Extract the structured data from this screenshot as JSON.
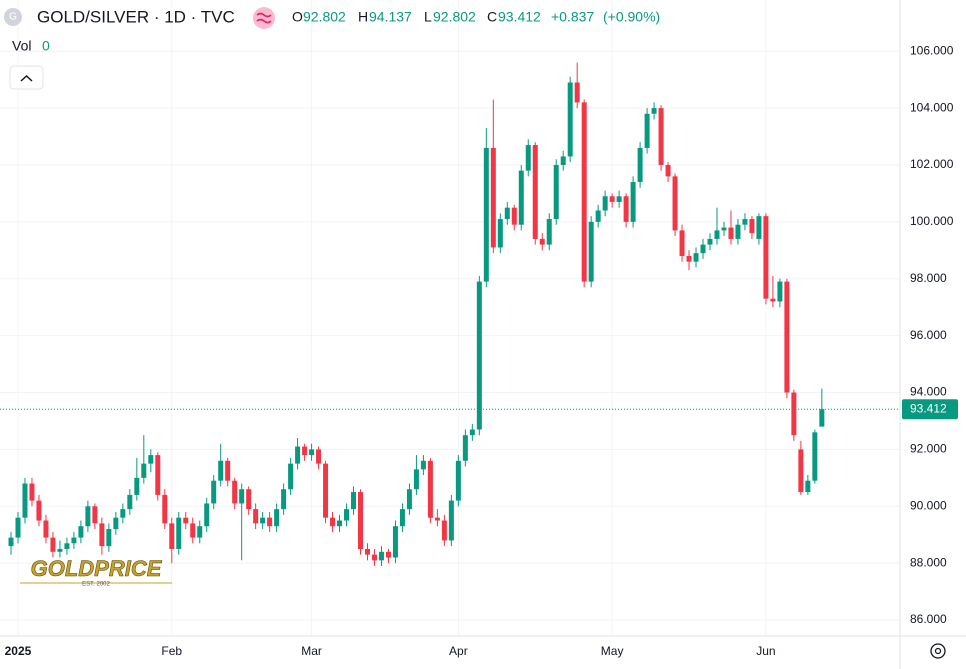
{
  "header": {
    "symbol": "GOLD/SILVER · 1D · TVC",
    "icon": "G",
    "open_label": "O",
    "high_label": "H",
    "low_label": "L",
    "close_label": "C",
    "change": "+0.837",
    "change_pct": "(+0.90%)",
    "vol_label": "Vol",
    "vol_value": "0"
  },
  "watermark": {
    "title": "GOLDPRICE",
    "subtitle": "EST. 2002"
  },
  "chart_data": {
    "type": "candlestick",
    "up_color": "#089981",
    "down_color": "#f23645",
    "grid": true,
    "categories": [
      null,
      "2025",
      null,
      null,
      null,
      null,
      null,
      null,
      null,
      null,
      null,
      null,
      null,
      null,
      null,
      null,
      null,
      null,
      null,
      null,
      null,
      null,
      null,
      "Feb",
      null,
      null,
      null,
      null,
      null,
      null,
      null,
      null,
      null,
      null,
      null,
      null,
      null,
      null,
      null,
      null,
      null,
      null,
      null,
      "Mar",
      null,
      null,
      null,
      null,
      null,
      null,
      null,
      null,
      null,
      null,
      null,
      null,
      null,
      null,
      null,
      null,
      null,
      null,
      null,
      null,
      "Apr",
      null,
      null,
      null,
      null,
      null,
      null,
      null,
      null,
      null,
      null,
      null,
      null,
      null,
      null,
      null,
      null,
      null,
      null,
      null,
      null,
      null,
      "May",
      null,
      null,
      null,
      null,
      null,
      null,
      null,
      null,
      null,
      null,
      null,
      null,
      null,
      null,
      null,
      null,
      null,
      null,
      null,
      null,
      null,
      "Jun",
      null,
      null,
      null,
      null,
      null,
      null,
      null,
      null
    ],
    "ohlc": [
      [
        88.6,
        89.1,
        88.3,
        88.9
      ],
      [
        88.9,
        89.8,
        88.7,
        89.6
      ],
      [
        89.6,
        91.0,
        89.4,
        90.8
      ],
      [
        90.8,
        91.0,
        90.0,
        90.2
      ],
      [
        90.2,
        90.4,
        89.3,
        89.5
      ],
      [
        89.5,
        89.7,
        88.7,
        88.9
      ],
      [
        88.9,
        89.1,
        88.2,
        88.4
      ],
      [
        88.4,
        88.8,
        88.2,
        88.5
      ],
      [
        88.5,
        88.9,
        88.3,
        88.7
      ],
      [
        88.7,
        89.1,
        88.5,
        88.9
      ],
      [
        88.9,
        89.5,
        88.7,
        89.3
      ],
      [
        89.3,
        90.2,
        89.1,
        90.0
      ],
      [
        90.0,
        90.1,
        89.2,
        89.4
      ],
      [
        89.4,
        89.6,
        88.3,
        88.6
      ],
      [
        88.6,
        89.4,
        88.4,
        89.2
      ],
      [
        89.2,
        89.8,
        89.0,
        89.6
      ],
      [
        89.6,
        90.1,
        89.4,
        89.9
      ],
      [
        89.9,
        90.6,
        89.7,
        90.4
      ],
      [
        90.4,
        91.7,
        90.2,
        91.0
      ],
      [
        91.0,
        92.5,
        90.8,
        91.5
      ],
      [
        91.5,
        92.0,
        91.2,
        91.8
      ],
      [
        91.8,
        91.9,
        90.2,
        90.4
      ],
      [
        90.4,
        90.6,
        89.2,
        89.4
      ],
      [
        89.4,
        89.6,
        88.0,
        88.5
      ],
      [
        88.5,
        89.8,
        88.3,
        89.6
      ],
      [
        89.6,
        89.8,
        89.2,
        89.4
      ],
      [
        89.4,
        89.6,
        88.7,
        88.9
      ],
      [
        88.9,
        89.5,
        88.7,
        89.3
      ],
      [
        89.3,
        90.3,
        89.1,
        90.1
      ],
      [
        90.1,
        91.1,
        89.9,
        90.9
      ],
      [
        90.9,
        92.2,
        90.7,
        91.6
      ],
      [
        91.6,
        91.7,
        90.7,
        90.9
      ],
      [
        90.9,
        91.0,
        89.9,
        90.1
      ],
      [
        90.1,
        90.8,
        88.1,
        90.6
      ],
      [
        90.6,
        90.7,
        89.7,
        89.9
      ],
      [
        89.9,
        90.1,
        89.2,
        89.4
      ],
      [
        89.4,
        89.8,
        89.2,
        89.6
      ],
      [
        89.6,
        89.8,
        89.1,
        89.3
      ],
      [
        89.3,
        90.1,
        89.1,
        89.9
      ],
      [
        89.9,
        90.8,
        89.7,
        90.6
      ],
      [
        90.6,
        91.7,
        90.4,
        91.5
      ],
      [
        91.5,
        92.4,
        91.3,
        92.1
      ],
      [
        92.1,
        92.2,
        91.6,
        91.8
      ],
      [
        91.8,
        92.2,
        91.6,
        92.0
      ],
      [
        92.0,
        92.1,
        91.3,
        91.5
      ],
      [
        91.5,
        91.6,
        89.4,
        89.6
      ],
      [
        89.6,
        89.8,
        89.1,
        89.3
      ],
      [
        89.3,
        89.7,
        89.1,
        89.5
      ],
      [
        89.5,
        90.1,
        89.3,
        89.9
      ],
      [
        89.9,
        90.7,
        89.7,
        90.5
      ],
      [
        90.5,
        90.6,
        88.3,
        88.5
      ],
      [
        88.5,
        88.7,
        88.1,
        88.3
      ],
      [
        88.3,
        88.5,
        87.9,
        88.1
      ],
      [
        88.1,
        88.6,
        87.9,
        88.4
      ],
      [
        88.4,
        88.5,
        88.0,
        88.2
      ],
      [
        88.2,
        89.5,
        88.0,
        89.3
      ],
      [
        89.3,
        90.1,
        89.1,
        89.9
      ],
      [
        89.9,
        90.8,
        89.7,
        90.6
      ],
      [
        90.6,
        91.8,
        90.4,
        91.3
      ],
      [
        91.3,
        91.8,
        91.1,
        91.6
      ],
      [
        91.6,
        91.7,
        89.4,
        89.6
      ],
      [
        89.6,
        89.9,
        89.3,
        89.5
      ],
      [
        89.5,
        89.7,
        88.6,
        88.8
      ],
      [
        88.8,
        90.4,
        88.6,
        90.2
      ],
      [
        90.2,
        91.8,
        90.0,
        91.6
      ],
      [
        91.6,
        92.7,
        91.4,
        92.5
      ],
      [
        92.5,
        92.9,
        92.3,
        92.7
      ],
      [
        92.7,
        98.1,
        92.5,
        97.9
      ],
      [
        97.9,
        103.3,
        97.7,
        102.6
      ],
      [
        102.6,
        104.3,
        98.9,
        99.1
      ],
      [
        99.1,
        100.3,
        98.9,
        100.1
      ],
      [
        100.1,
        100.7,
        99.9,
        100.5
      ],
      [
        100.5,
        100.6,
        99.7,
        99.9
      ],
      [
        99.9,
        102.0,
        99.7,
        101.8
      ],
      [
        101.8,
        102.9,
        101.6,
        102.7
      ],
      [
        102.7,
        102.8,
        99.2,
        99.4
      ],
      [
        99.4,
        99.6,
        99.0,
        99.2
      ],
      [
        99.2,
        100.3,
        99.0,
        100.1
      ],
      [
        100.1,
        102.2,
        99.9,
        102.0
      ],
      [
        102.0,
        102.5,
        101.8,
        102.3
      ],
      [
        102.3,
        105.1,
        102.1,
        104.9
      ],
      [
        104.9,
        105.6,
        104.0,
        104.2
      ],
      [
        104.2,
        104.3,
        97.7,
        97.9
      ],
      [
        97.9,
        100.2,
        97.7,
        100.0
      ],
      [
        100.0,
        100.6,
        99.8,
        100.4
      ],
      [
        100.4,
        101.1,
        100.2,
        100.9
      ],
      [
        100.9,
        101.0,
        100.5,
        100.7
      ],
      [
        100.7,
        101.1,
        100.5,
        100.9
      ],
      [
        100.9,
        101.0,
        99.8,
        100.0
      ],
      [
        100.0,
        101.6,
        99.8,
        101.4
      ],
      [
        101.4,
        102.8,
        101.2,
        102.6
      ],
      [
        102.6,
        104.0,
        102.4,
        103.8
      ],
      [
        103.8,
        104.2,
        103.6,
        104.0
      ],
      [
        104.0,
        104.1,
        101.8,
        102.0
      ],
      [
        102.0,
        102.1,
        101.4,
        101.6
      ],
      [
        101.6,
        101.7,
        99.5,
        99.7
      ],
      [
        99.7,
        99.9,
        98.6,
        98.8
      ],
      [
        98.8,
        99.0,
        98.3,
        98.6
      ],
      [
        98.6,
        99.1,
        98.4,
        98.9
      ],
      [
        98.9,
        99.4,
        98.7,
        99.2
      ],
      [
        99.2,
        99.6,
        99.0,
        99.4
      ],
      [
        99.4,
        100.5,
        99.2,
        99.7
      ],
      [
        99.7,
        100.0,
        99.5,
        99.8
      ],
      [
        99.8,
        100.4,
        99.2,
        99.4
      ],
      [
        99.4,
        100.1,
        99.2,
        99.9
      ],
      [
        99.9,
        100.3,
        99.7,
        100.1
      ],
      [
        100.1,
        100.2,
        99.4,
        99.6
      ],
      [
        99.4,
        100.3,
        99.2,
        100.2
      ],
      [
        100.2,
        100.3,
        97.1,
        97.3
      ],
      [
        97.3,
        98.1,
        97.0,
        97.2
      ],
      [
        97.2,
        98.0,
        97.0,
        97.9
      ],
      [
        97.9,
        98.0,
        93.8,
        94.0
      ],
      [
        94.0,
        94.1,
        92.3,
        92.5
      ],
      [
        92.0,
        92.3,
        90.4,
        90.5
      ],
      [
        90.5,
        91.1,
        90.4,
        90.9
      ],
      [
        90.9,
        92.7,
        90.8,
        92.6
      ],
      [
        92.802,
        94.137,
        92.802,
        93.412
      ]
    ],
    "ylim": [
      85.44,
      107.8
    ],
    "yticks": [
      {
        "value": 86,
        "label": "86.000"
      },
      {
        "value": 88,
        "label": "88.000"
      },
      {
        "value": 90,
        "label": "90.000"
      },
      {
        "value": 92,
        "label": "92.000"
      },
      {
        "value": 94,
        "label": "94.000"
      },
      {
        "value": 96,
        "label": "96.000"
      },
      {
        "value": 98,
        "label": "98.000"
      },
      {
        "value": 100,
        "label": "100.000"
      },
      {
        "value": 102,
        "label": "102.000"
      },
      {
        "value": 104,
        "label": "104.000"
      },
      {
        "value": 106,
        "label": "106.000"
      }
    ]
  }
}
